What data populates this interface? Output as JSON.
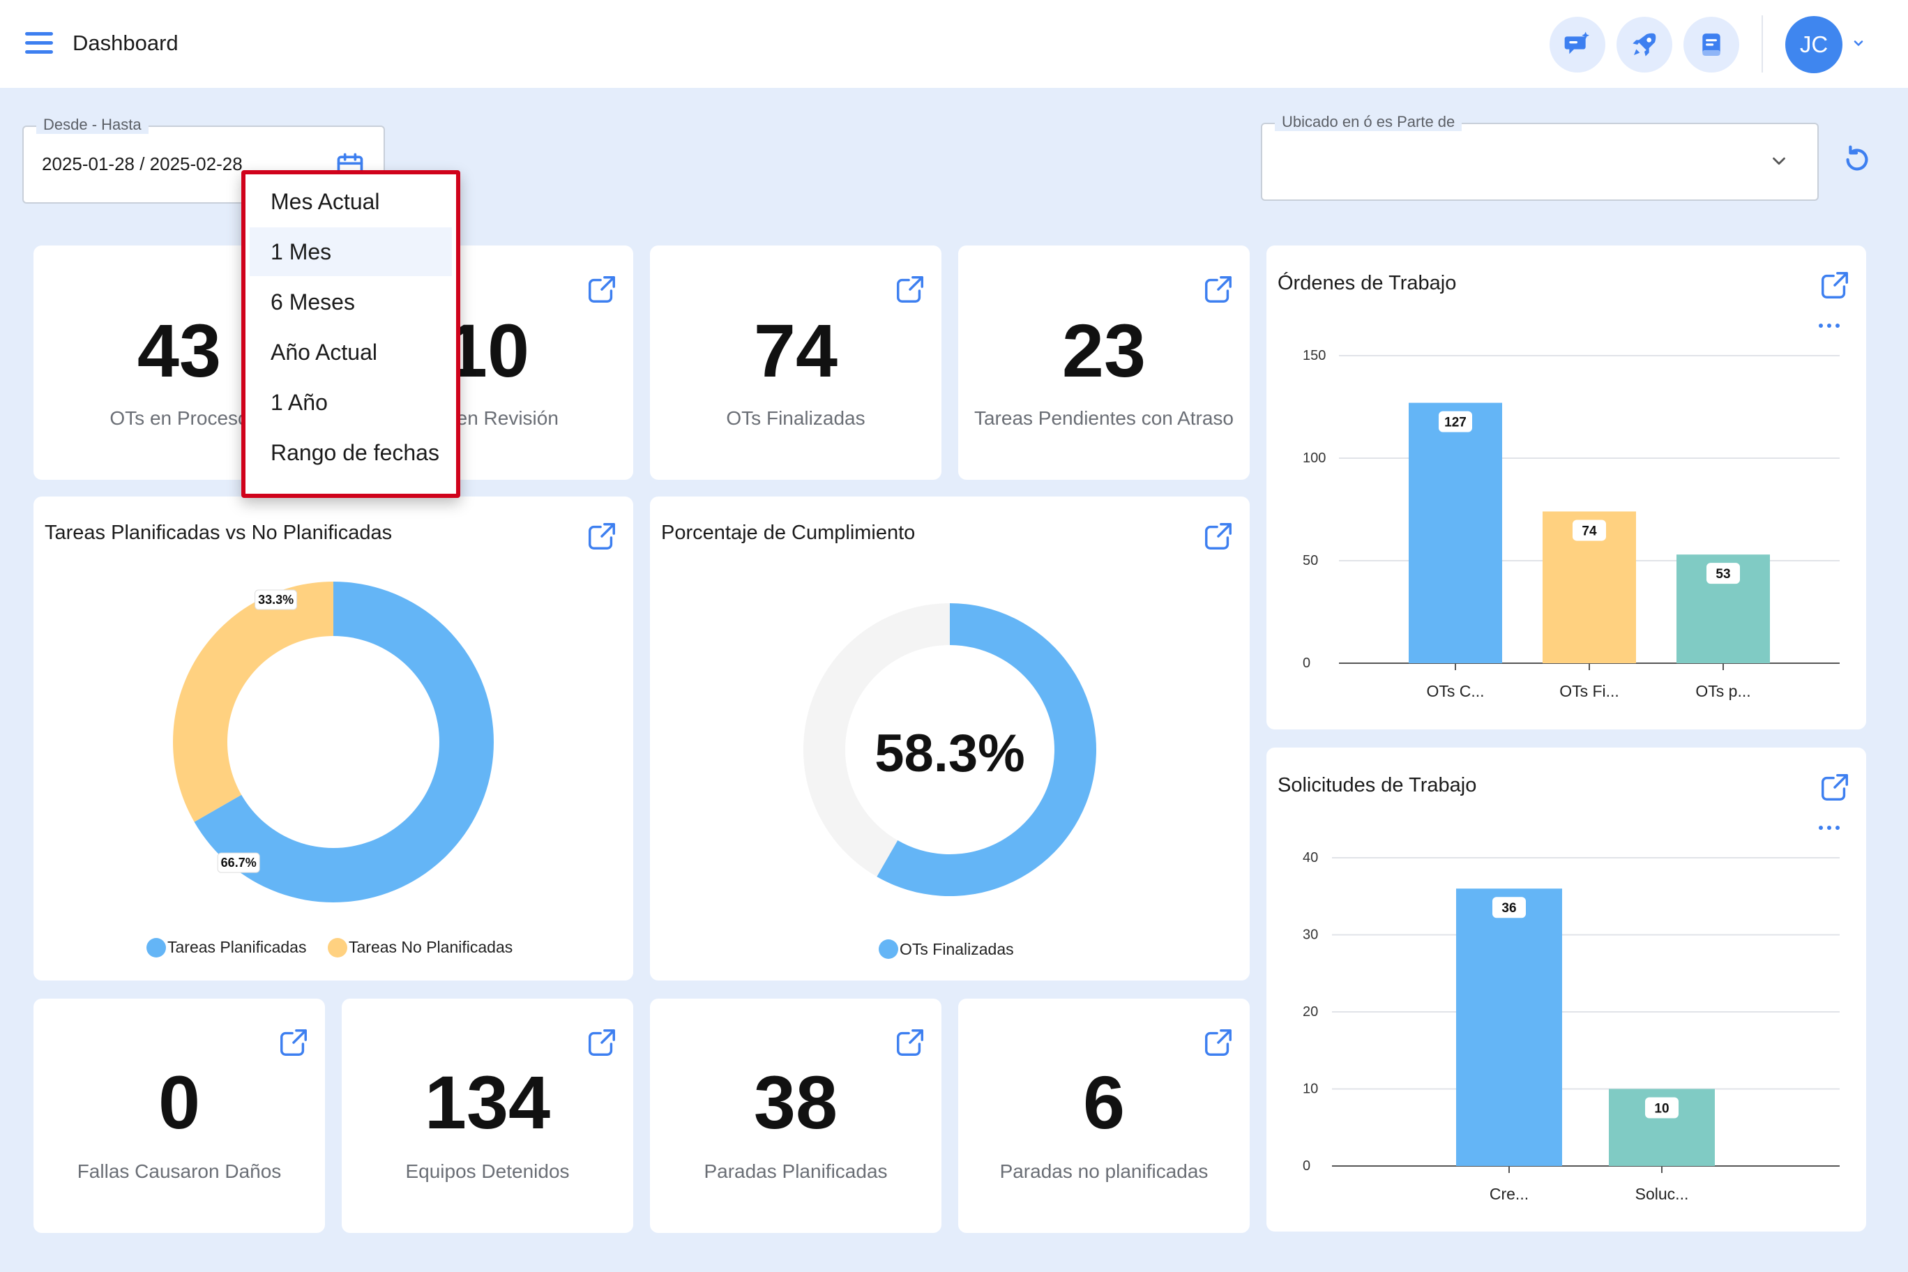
{
  "header": {
    "title": "Dashboard",
    "user_initials": "JC",
    "colors": {
      "accent": "#3f86ef",
      "icon_bg": "#e3ecfd"
    },
    "icons": [
      "menu-icon",
      "ai-chat-icon",
      "rocket-icon",
      "notes-icon",
      "chevron-down-icon"
    ]
  },
  "filters": {
    "date_range": {
      "label": "Desde - Hasta",
      "value": "2025-01-28 / 2025-02-28"
    },
    "location": {
      "label": "Ubicado en ó es Parte de",
      "value": ""
    }
  },
  "date_menu": {
    "items": [
      "Mes Actual",
      "1 Mes",
      "6 Meses",
      "Año Actual",
      "1 Año",
      "Rango de fechas"
    ],
    "hovered": "1 Mes"
  },
  "kpis_top": [
    {
      "value": "43",
      "label": "OTs en Proceso"
    },
    {
      "value": "10",
      "label": "OTs en Revisión"
    },
    {
      "value": "74",
      "label": "OTs Finalizadas"
    },
    {
      "value": "23",
      "label": "Tareas Pendientes con Atraso"
    }
  ],
  "kpis_bottom": [
    {
      "value": "0",
      "label": "Fallas Causaron Daños"
    },
    {
      "value": "134",
      "label": "Equipos Detenidos"
    },
    {
      "value": "38",
      "label": "Paradas Planificadas"
    },
    {
      "value": "6",
      "label": "Paradas no planificadas"
    }
  ],
  "charts": {
    "tareas": {
      "title": "Tareas Planificadas vs No Planificadas"
    },
    "cumplimiento": {
      "title": "Porcentaje de Cumplimiento"
    },
    "ordenes": {
      "title": "Órdenes de Trabajo"
    },
    "solicitudes": {
      "title": "Solicitudes de Trabajo"
    }
  },
  "chart_data": [
    {
      "type": "pie",
      "title": "Tareas Planificadas vs No Planificadas",
      "categories": [
        "Tareas Planificadas",
        "Tareas No Planificadas"
      ],
      "values": [
        66.7,
        33.3
      ],
      "labels": [
        "66.7%",
        "33.3%"
      ],
      "colors": [
        "#64b5f6",
        "#ffd180"
      ],
      "legend": "bottom"
    },
    {
      "type": "pie",
      "title": "Porcentaje de Cumplimiento",
      "categories": [
        "OTs Finalizadas"
      ],
      "values": [
        58.3
      ],
      "center_label": "58.3%",
      "colors": [
        "#64b5f6",
        "#f4f4f4"
      ],
      "legend": "bottom"
    },
    {
      "type": "bar",
      "title": "Órdenes de Trabajo",
      "categories": [
        "OTs C...",
        "OTs Fi...",
        "OTs p..."
      ],
      "values": [
        127,
        74,
        53
      ],
      "colors": [
        "#64b5f6",
        "#ffd180",
        "#80cbc4"
      ],
      "yticks": [
        "0",
        "50",
        "100",
        "150"
      ],
      "ylim": [
        0,
        150
      ],
      "grid": true
    },
    {
      "type": "bar",
      "title": "Solicitudes de Trabajo",
      "categories": [
        "Cre...",
        "Soluc..."
      ],
      "values": [
        36,
        10
      ],
      "colors": [
        "#64b5f6",
        "#80cbc4"
      ],
      "yticks": [
        "0",
        "10",
        "20",
        "30",
        "40"
      ],
      "ylim": [
        0,
        40
      ],
      "grid": true
    }
  ]
}
